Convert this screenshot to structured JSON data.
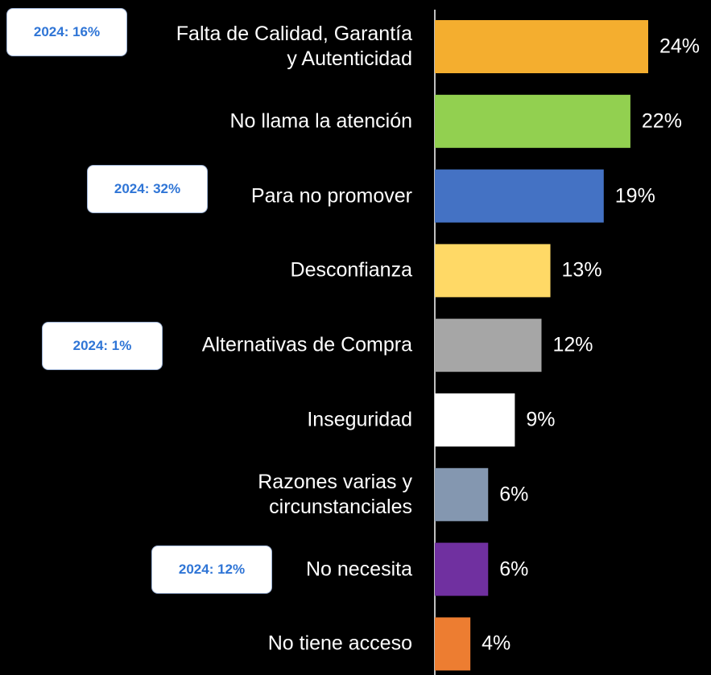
{
  "chart_data": {
    "type": "barh",
    "categories": [
      "Falta de Calidad, Garantía\ny Autenticidad",
      "No llama la atención",
      "Para no promover",
      "Desconfianza",
      "Alternativas de Compra",
      "Inseguridad",
      "Razones varias y\ncircunstanciales",
      "No necesita",
      "No tiene acceso"
    ],
    "values": [
      24,
      22,
      19,
      13,
      12,
      9,
      6,
      6,
      4
    ],
    "value_labels": [
      "24%",
      "22%",
      "19%",
      "13%",
      "12%",
      "9%",
      "6%",
      "6%",
      "4%"
    ],
    "colors": [
      "#f4ae2f",
      "#92d050",
      "#4472c4",
      "#ffd966",
      "#a6a6a6",
      "#ffffff",
      "#8497b0",
      "#7030a0",
      "#ed7d31"
    ],
    "xlim": [
      0,
      24
    ],
    "annotations": [
      "2024: 16%",
      "2024: 32%",
      "2024: 1%",
      "2024: 12%"
    ]
  }
}
